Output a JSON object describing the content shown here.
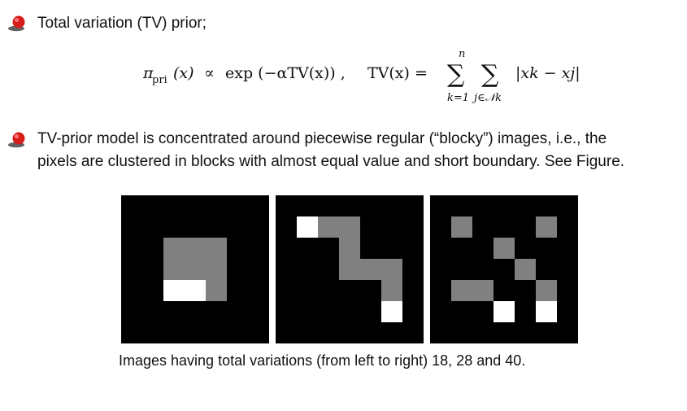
{
  "bullets": [
    {
      "text": "Total variation (TV) prior;"
    },
    {
      "line1": "TV-prior model is concentrated around piecewise regular (“blocky”) images, i.e., the",
      "line2": "pixels are clustered in blocks with almost equal value and short boundary. See Figure."
    }
  ],
  "formula": {
    "prior_pi": "π",
    "prior_sub": "pri",
    "prior_arg": "(x)",
    "proportional": "∝",
    "exp_expr": "exp (−αTV(x)) ,",
    "tv_lhs": "TV(x) =",
    "sum_symbol": "∑",
    "sum1_upper": "n",
    "sum1_lower": "k=1",
    "sum2_lower": "j∈𝒩k",
    "summand": "|xk − xj|"
  },
  "figure": {
    "caption": "Images having total variations (from left to right) 18, 28 and 40.",
    "images": [
      {
        "tv": 18,
        "grid": [
          [
            0,
            0,
            0,
            0,
            0,
            0,
            0
          ],
          [
            0,
            0,
            0,
            0,
            0,
            0,
            0
          ],
          [
            0,
            0,
            1,
            1,
            1,
            0,
            0
          ],
          [
            0,
            0,
            1,
            1,
            1,
            0,
            0
          ],
          [
            0,
            0,
            2,
            2,
            1,
            0,
            0
          ],
          [
            0,
            0,
            0,
            0,
            0,
            0,
            0
          ],
          [
            0,
            0,
            0,
            0,
            0,
            0,
            0
          ]
        ]
      },
      {
        "tv": 28,
        "grid": [
          [
            0,
            0,
            0,
            0,
            0,
            0,
            0
          ],
          [
            2,
            1,
            1,
            0,
            0,
            0,
            0
          ],
          [
            0,
            0,
            1,
            0,
            0,
            0,
            0
          ],
          [
            0,
            0,
            1,
            1,
            1,
            0,
            0
          ],
          [
            0,
            0,
            0,
            0,
            1,
            0,
            0
          ],
          [
            0,
            0,
            0,
            0,
            2,
            0,
            0
          ],
          [
            0,
            0,
            0,
            0,
            0,
            0,
            0
          ]
        ]
      },
      {
        "tv": 40,
        "grid": [
          [
            0,
            0,
            0,
            0,
            0,
            0,
            0
          ],
          [
            1,
            0,
            0,
            0,
            1,
            0,
            0
          ],
          [
            0,
            0,
            1,
            0,
            0,
            0,
            0
          ],
          [
            0,
            0,
            0,
            1,
            0,
            0,
            0
          ],
          [
            1,
            1,
            0,
            0,
            1,
            0,
            0
          ],
          [
            0,
            0,
            2,
            0,
            2,
            0,
            0
          ],
          [
            0,
            0,
            0,
            0,
            0,
            0,
            0
          ]
        ]
      }
    ],
    "grid_offsets": [
      [
        0,
        0
      ],
      [
        1,
        0
      ],
      [
        1,
        0
      ]
    ],
    "colors": {
      "0": "#000000",
      "1": "#808080",
      "2": "#ffffff"
    }
  }
}
